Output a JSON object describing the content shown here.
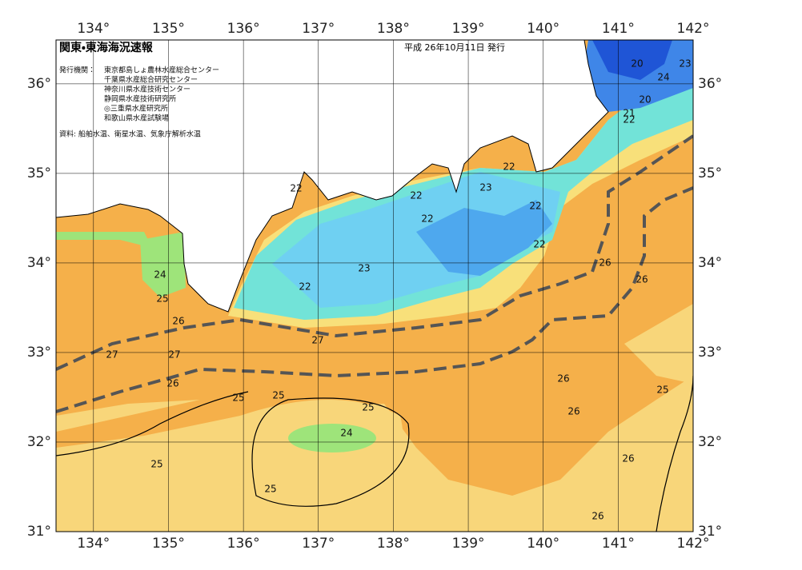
{
  "map": {
    "title": "関東・東海海況速報",
    "date": "平成 26年10月11日 発行",
    "issuers_label": "発行機関：",
    "issuers": [
      "東京都島しょ農林水産総合センター",
      "千葉県水産総合研究センター",
      "神奈川県水産技術センター",
      "静岡県水産技術研究所",
      "◎三重県水産研究所",
      "和歌山県水産試験場"
    ],
    "source": "資料: 船舶水温、衛星水温、気象庁解析水温",
    "xlim": [
      133.5,
      142
    ],
    "ylim": [
      31,
      36.49
    ],
    "xticks": [
      {
        "value": 134,
        "label": "134°"
      },
      {
        "value": 135,
        "label": "135°"
      },
      {
        "value": 136,
        "label": "136°"
      },
      {
        "value": 137,
        "label": "137°"
      },
      {
        "value": 138,
        "label": "138°"
      },
      {
        "value": 139,
        "label": "139°"
      },
      {
        "value": 140,
        "label": "140°"
      },
      {
        "value": 141,
        "label": "141°"
      },
      {
        "value": 142,
        "label": "142°"
      }
    ],
    "yticks": [
      {
        "value": 31,
        "label": "31°"
      },
      {
        "value": 32,
        "label": "32°"
      },
      {
        "value": 33,
        "label": "33°"
      },
      {
        "value": 34,
        "label": "34°"
      },
      {
        "value": 35,
        "label": "35°"
      },
      {
        "value": 36,
        "label": "36°"
      }
    ],
    "contour_labels": [
      20,
      23,
      24,
      20,
      21,
      22,
      22,
      23,
      22,
      22,
      22,
      22,
      22,
      26,
      26,
      24,
      23,
      22,
      25,
      26,
      27,
      27,
      27,
      26,
      25,
      25,
      25,
      26,
      26,
      25,
      24,
      25,
      25,
      26,
      26
    ]
  }
}
